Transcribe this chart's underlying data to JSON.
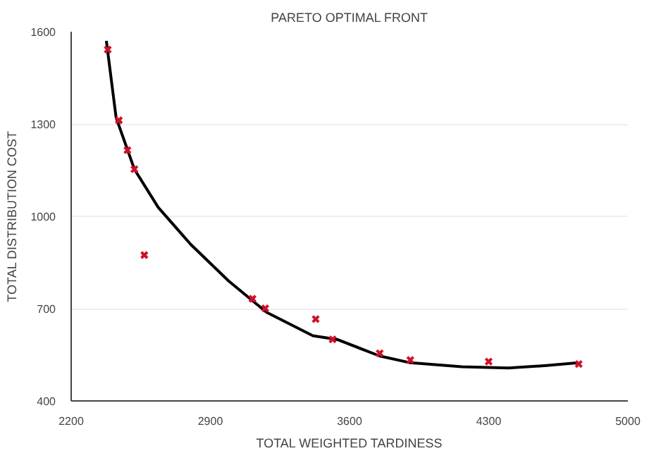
{
  "chart_data": {
    "type": "scatter",
    "title": "PARETO OPTIMAL FRONT",
    "xlabel": "TOTAL WEIGHTED TARDINESS",
    "ylabel": "TOTAL DISTRIBUTION COST",
    "xlim": [
      2200,
      5000
    ],
    "ylim": [
      400,
      1600
    ],
    "xticks": [
      2200,
      2900,
      3600,
      4300,
      5000
    ],
    "yticks": [
      400,
      700,
      1000,
      1300,
      1600
    ],
    "grid": "y",
    "series": [
      {
        "type": "line",
        "color": "#000000",
        "marker": "none",
        "line_style": "solid",
        "x": [
          2377,
          2426,
          2518,
          2638,
          2801,
          2992,
          3183,
          3416,
          3537,
          3752,
          3906,
          4166,
          4399,
          4590,
          4753
        ],
        "values": [
          1570,
          1321,
          1153,
          1029,
          909,
          790,
          688,
          612,
          600,
          546,
          524,
          511,
          507,
          515,
          524
        ]
      },
      {
        "color": "#d0102a",
        "marker": "cross",
        "x": [
          2384,
          2440,
          2483,
          2518,
          2568,
          3112,
          3176,
          3430,
          3515,
          3752,
          3906,
          4300,
          4753
        ],
        "values": [
          1542,
          1312,
          1215,
          1153,
          874,
          732,
          701,
          666,
          600,
          555,
          533,
          528,
          520
        ]
      }
    ]
  }
}
